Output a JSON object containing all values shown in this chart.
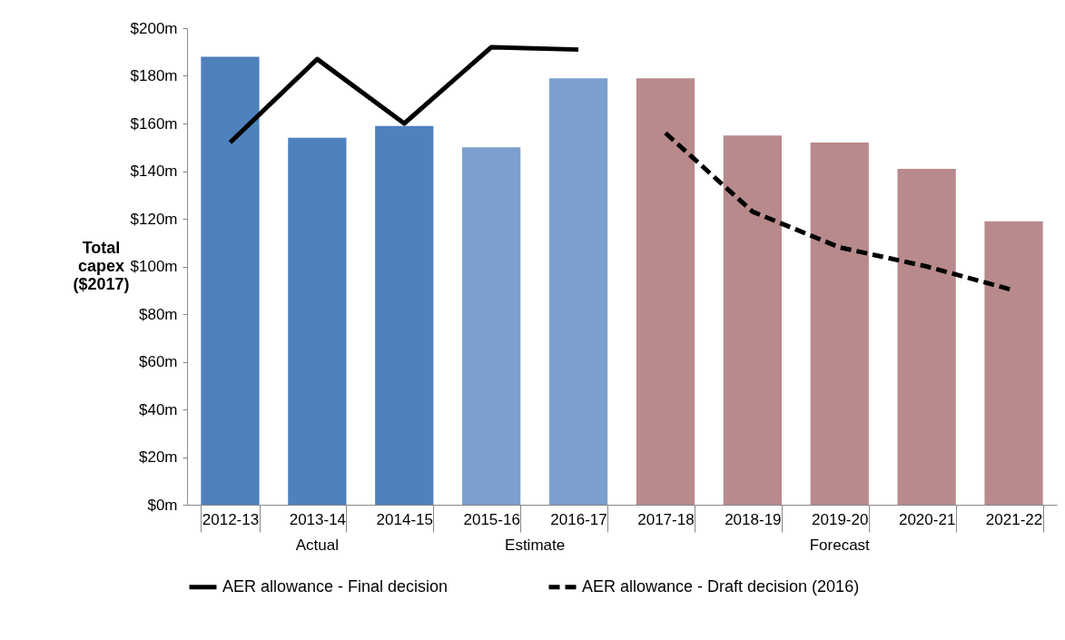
{
  "chart_data": {
    "type": "bar",
    "ylabel": "Total capex ($2017)",
    "categories": [
      "2012-13",
      "2013-14",
      "2014-15",
      "2015-16",
      "2016-17",
      "2017-18",
      "2018-19",
      "2019-20",
      "2020-21",
      "2021-22"
    ],
    "series": [
      {
        "colors": [
          "#4f81bd",
          "#4f81bd",
          "#4f81bd",
          "#7ba0cd",
          "#7ba0cd",
          "#b98a8c",
          "#b98a8c",
          "#b98a8c",
          "#b98a8c",
          "#b98a8c"
        ],
        "values": [
          188,
          154,
          159,
          150,
          179,
          179,
          155,
          152,
          141,
          119
        ]
      },
      {
        "type": "line",
        "name": "AER allowance - Final decision",
        "color": "#000000",
        "line_style": "solid",
        "values": [
          152,
          187,
          160,
          192,
          191,
          null,
          null,
          null,
          null,
          null
        ]
      },
      {
        "type": "line",
        "name": "AER allowance - Draft decision (2016)",
        "color": "#000000",
        "line_style": "dashed",
        "values": [
          null,
          null,
          null,
          null,
          null,
          156,
          123,
          108,
          100,
          90
        ]
      }
    ],
    "ylim": [
      0,
      200
    ],
    "yticks": [
      {
        "value": 0,
        "label": "$0m"
      },
      {
        "value": 20,
        "label": "$20m"
      },
      {
        "value": 40,
        "label": "$40m"
      },
      {
        "value": 60,
        "label": "$60m"
      },
      {
        "value": 80,
        "label": "$80m"
      },
      {
        "value": 100,
        "label": "$100m"
      },
      {
        "value": 120,
        "label": "$120m"
      },
      {
        "value": 140,
        "label": "$140m"
      },
      {
        "value": 160,
        "label": "$160m"
      },
      {
        "value": 180,
        "label": "$180m"
      },
      {
        "value": 200,
        "label": "$200m"
      }
    ],
    "grid": false,
    "legend": "bottom",
    "annotations": [
      "Actual",
      "Estimate",
      "Forecast"
    ]
  }
}
